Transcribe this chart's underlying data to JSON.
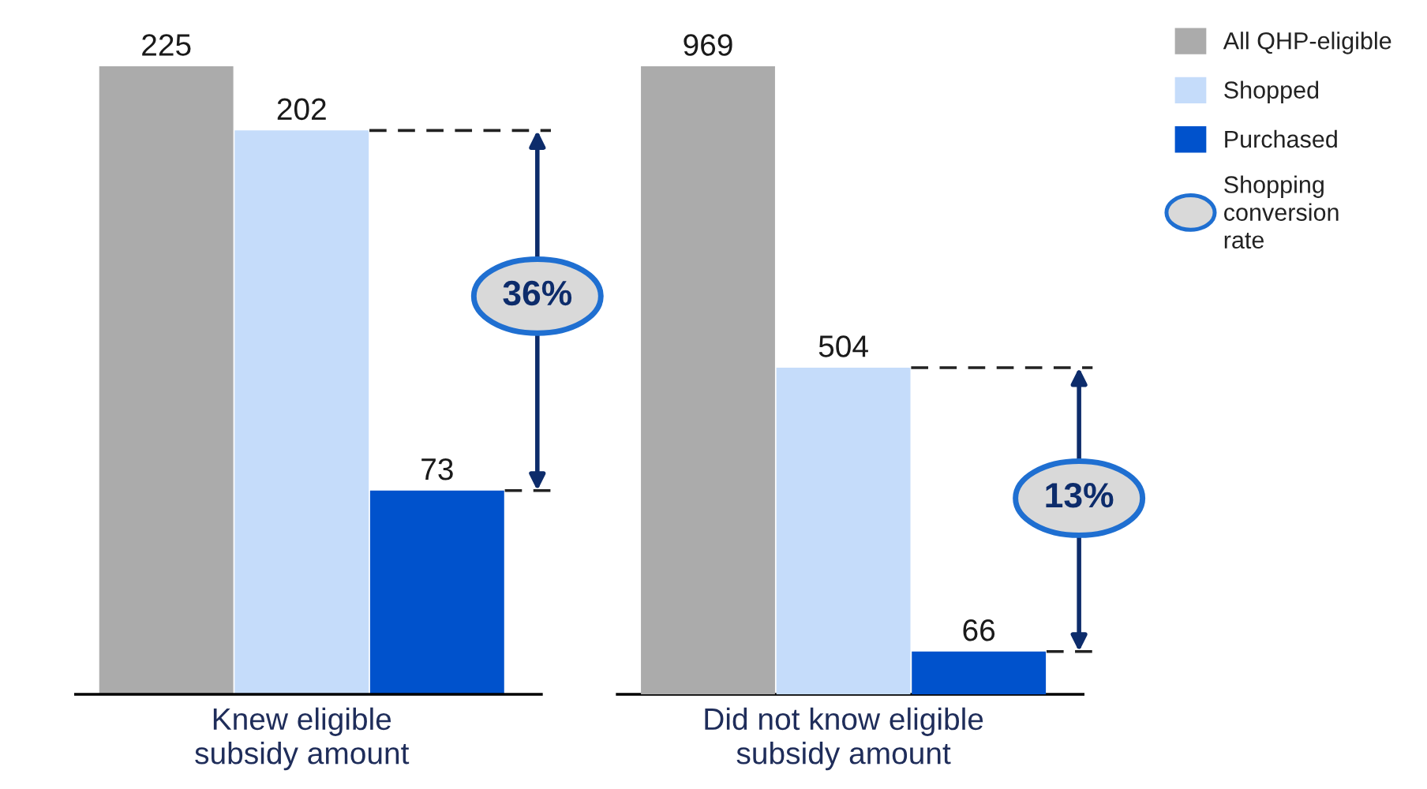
{
  "chart_data": {
    "type": "bar",
    "stacked": true,
    "categories": [
      null,
      "Knew eligible\nsubsidy amount",
      null,
      null,
      null,
      "Did not know eligible\nsubsidy amount",
      null
    ],
    "series": [
      {
        "color": "#ababab",
        "values": [
          225,
          null,
          null,
          null,
          null,
          null,
          null
        ]
      },
      {
        "color": "#c5dcfa",
        "values": [
          null,
          202,
          null,
          null,
          null,
          null,
          null
        ]
      },
      {
        "color": "#0052cc",
        "values": [
          null,
          null,
          73,
          null,
          null,
          null,
          null
        ]
      },
      {
        "name": "All QHP-eligible",
        "color": "#ababab",
        "axis": "y2",
        "values": [
          null,
          null,
          null,
          null,
          969,
          null,
          null
        ]
      },
      {
        "name": "Shopped",
        "color": "#c5dcfa",
        "axis": "y2",
        "values": [
          null,
          null,
          null,
          null,
          null,
          504,
          null
        ]
      },
      {
        "name": "Purchased",
        "color": "#0052cc",
        "axis": "y2",
        "values": [
          null,
          null,
          null,
          null,
          null,
          null,
          66
        ]
      }
    ],
    "data_labels": true,
    "legend": "top right",
    "annotations": [
      "36%",
      "13%",
      "Shopping\nconversion\nrate"
    ]
  }
}
